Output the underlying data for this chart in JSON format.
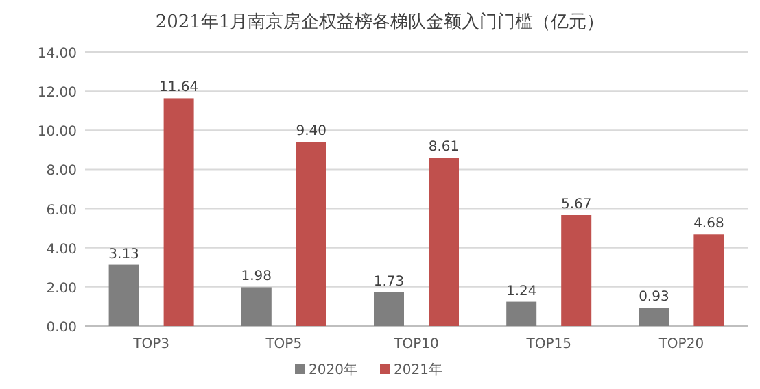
{
  "chart_data": {
    "type": "bar",
    "title": "2021年1月南京房企权益榜各梯队金额入门门槛（亿元）",
    "categories": [
      "TOP3",
      "TOP5",
      "TOP10",
      "TOP15",
      "TOP20"
    ],
    "series": [
      {
        "name": "2020年",
        "color": "#7f7f7f",
        "values": [
          3.13,
          1.98,
          1.73,
          1.24,
          0.93
        ],
        "value_labels": [
          "3.13",
          "1.98",
          "1.73",
          "1.24",
          "0.93"
        ]
      },
      {
        "name": "2021年",
        "color": "#c0504d",
        "values": [
          11.64,
          9.4,
          8.61,
          5.67,
          4.68
        ],
        "value_labels": [
          "11.64",
          "9.40",
          "8.61",
          "5.67",
          "4.68"
        ]
      }
    ],
    "ylim": [
      0,
      14
    ],
    "yticks": [
      {
        "value": 0,
        "label": "0.00"
      },
      {
        "value": 2,
        "label": "2.00"
      },
      {
        "value": 4,
        "label": "4.00"
      },
      {
        "value": 6,
        "label": "6.00"
      },
      {
        "value": 8,
        "label": "8.00"
      },
      {
        "value": 10,
        "label": "10.00"
      },
      {
        "value": 12,
        "label": "12.00"
      },
      {
        "value": 14,
        "label": "14.00"
      }
    ],
    "grid": "y",
    "legend": "bottom"
  }
}
